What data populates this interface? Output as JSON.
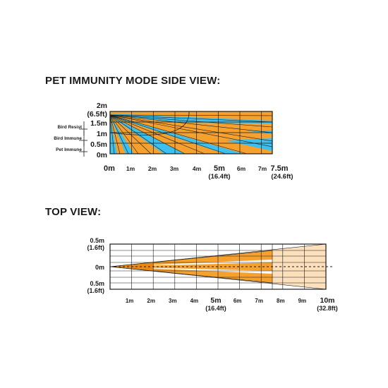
{
  "side_view": {
    "title": "PET IMMUNITY MODE SIDE VIEW:",
    "y_labels": [
      {
        "text": "2m",
        "value": 2
      },
      {
        "text": "(6.5ft)",
        "value": 1.8
      },
      {
        "text": "1.5m",
        "value": 1.5
      },
      {
        "text": "1m",
        "value": 1.0
      },
      {
        "text": "0.5m",
        "value": 0.5
      },
      {
        "text": "0m",
        "value": 0
      }
    ],
    "zone_labels": [
      {
        "text": "Bird Resist",
        "value": 1.4
      },
      {
        "text": "Bird Immune",
        "value": 0.8
      },
      {
        "text": "Pet Immune",
        "value": 0.2
      }
    ],
    "x_labels": [
      {
        "text": "0m",
        "value": 0,
        "ft": ""
      },
      {
        "text": "1m",
        "value": 1,
        "ft": ""
      },
      {
        "text": "2m",
        "value": 2,
        "ft": ""
      },
      {
        "text": "3m",
        "value": 3,
        "ft": ""
      },
      {
        "text": "4m",
        "value": 4,
        "ft": ""
      },
      {
        "text": "5m",
        "value": 5,
        "ft": "(16.4ft)"
      },
      {
        "text": "6m",
        "value": 6,
        "ft": ""
      },
      {
        "text": "7m",
        "value": 7,
        "ft": ""
      },
      {
        "text": "7.5m",
        "value": 7.5,
        "ft": "(24.6ft)"
      }
    ],
    "x_range": [
      0,
      7.5
    ],
    "y_range": [
      0,
      2
    ],
    "colors": {
      "orange": "#F6A12E",
      "blue": "#3EC0EE"
    }
  },
  "top_view": {
    "title": "TOP VIEW:",
    "y_labels": [
      {
        "text": "0.5m",
        "sub": "(1.6ft)",
        "value": 0.5
      },
      {
        "text": "0m",
        "sub": "",
        "value": 0
      },
      {
        "text": "0.5m",
        "sub": "(1.6ft)",
        "value": -0.5
      }
    ],
    "x_labels": [
      {
        "text": "1m",
        "value": 1,
        "ft": ""
      },
      {
        "text": "2m",
        "value": 2,
        "ft": ""
      },
      {
        "text": "3m",
        "value": 3,
        "ft": ""
      },
      {
        "text": "4m",
        "value": 4,
        "ft": ""
      },
      {
        "text": "5m",
        "value": 5,
        "ft": "(16.4ft)"
      },
      {
        "text": "6m",
        "value": 6,
        "ft": ""
      },
      {
        "text": "7m",
        "value": 7,
        "ft": ""
      },
      {
        "text": "8m",
        "value": 8,
        "ft": ""
      },
      {
        "text": "9m",
        "value": 9,
        "ft": ""
      },
      {
        "text": "10m",
        "value": 10,
        "ft": "(32.8ft)"
      }
    ],
    "x_range": [
      0,
      10
    ],
    "colors": {
      "orange": "#F6A12E",
      "light": "#FCE0BC"
    }
  }
}
